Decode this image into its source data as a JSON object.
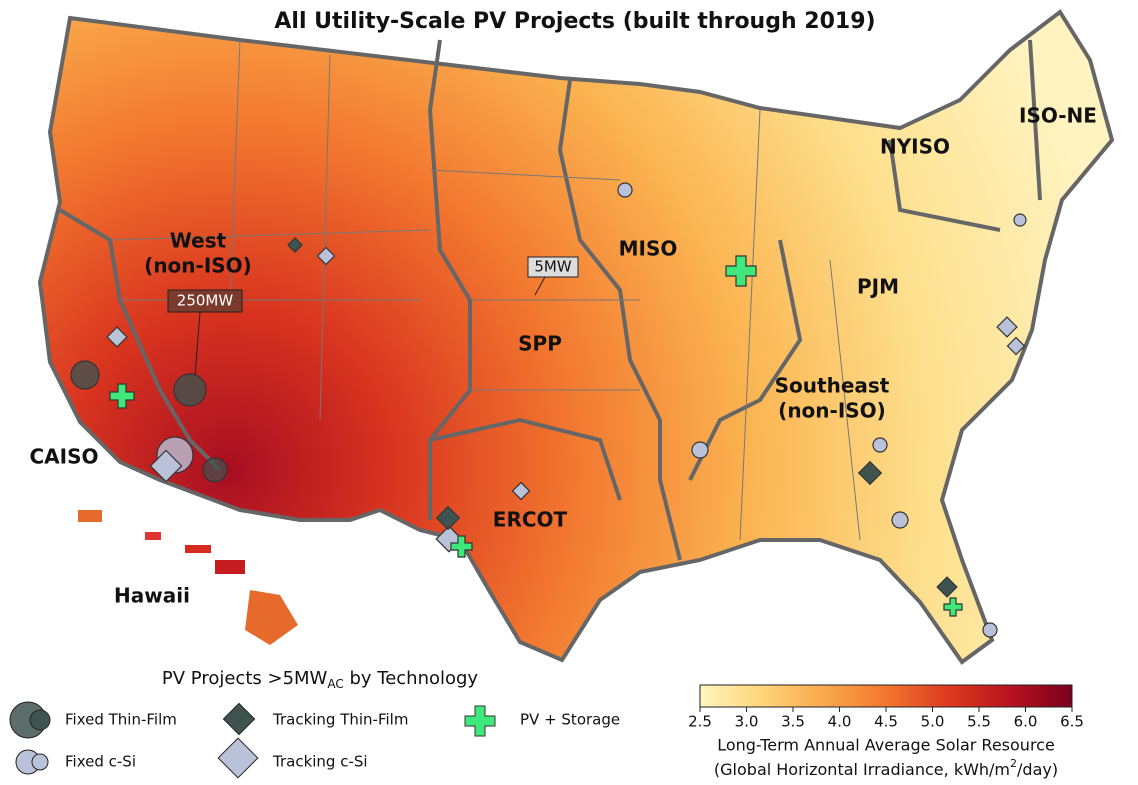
{
  "title": "All Utility-Scale PV Projects (built through 2019)",
  "regions": [
    {
      "lines": [
        "West",
        "(non-ISO)"
      ]
    },
    {
      "lines": [
        "CAISO"
      ]
    },
    {
      "lines": [
        "Hawaii"
      ]
    },
    {
      "lines": [
        "SPP"
      ]
    },
    {
      "lines": [
        "ERCOT"
      ]
    },
    {
      "lines": [
        "MISO"
      ]
    },
    {
      "lines": [
        "PJM"
      ]
    },
    {
      "lines": [
        "NYISO"
      ]
    },
    {
      "lines": [
        "ISO-NE"
      ]
    },
    {
      "lines": [
        "Southeast",
        "(non-ISO)"
      ]
    }
  ],
  "annotations": [
    "250MW",
    "5MW"
  ],
  "legend": {
    "title": {
      "text": "PV Projects >5MW",
      "subscript": "AC",
      "suffix": " by Technology"
    },
    "items": [
      "Fixed Thin-Film",
      "Fixed c-Si",
      "Tracking Thin-Film",
      "Tracking c-Si",
      "PV + Storage"
    ]
  },
  "colorbar": {
    "lim": [
      2.5,
      6.5
    ],
    "ticks": [
      2.5,
      {
        "value": 3,
        "label": "3.0"
      },
      3.5,
      {
        "value": 4,
        "label": "4.0"
      },
      4.5,
      {
        "value": 5,
        "label": "5.0"
      },
      5.5,
      {
        "value": 6,
        "label": "6.0"
      },
      6.5
    ],
    "colors": [
      "#fff6c0",
      "#fdd57a",
      "#f9a94b",
      "#f2772f",
      "#dd3b1f",
      "#b8121f",
      "#7a0020"
    ],
    "label": {
      "line1": "Long-Term Annual Average Solar Resource",
      "line2": "(Global Horizontal Irradiance, kWh/m",
      "superscript": "2",
      "line2_end": "/day)"
    }
  }
}
